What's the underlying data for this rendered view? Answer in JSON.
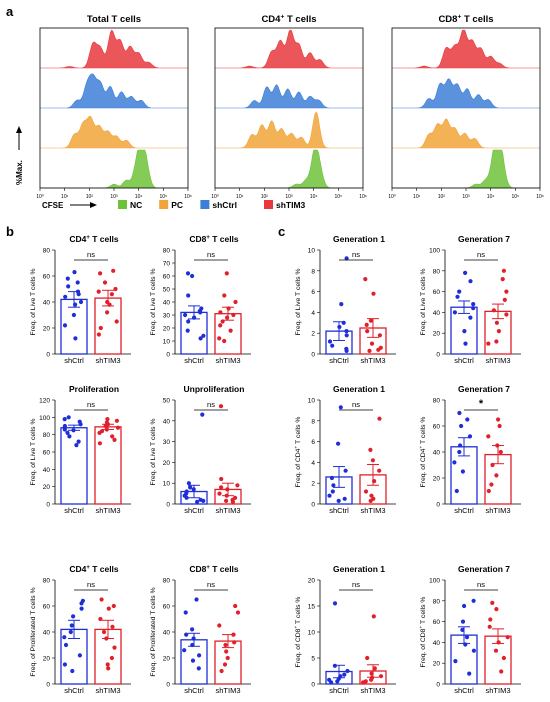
{
  "figure": {
    "panel_labels": [
      "a",
      "b",
      "c"
    ],
    "colors": {
      "NC": "#6ec23a",
      "PC": "#f2a43a",
      "shCtrl": "#3d7fd8",
      "shTIM3": "#e8383d",
      "dot_blue": "#1f2fd6",
      "dot_red": "#e0202a"
    },
    "legend": {
      "axis_label": "CFSE",
      "entries": [
        {
          "name": "NC",
          "color": "#6ec23a"
        },
        {
          "name": "PC",
          "color": "#f2a43a"
        },
        {
          "name": "shCtrl",
          "color": "#3d7fd8"
        },
        {
          "name": "shTIM3",
          "color": "#e8383d"
        }
      ]
    },
    "y_axis_label_a": "%Max."
  },
  "chart_data": [
    {
      "type": "area",
      "panel": "a",
      "title": "Total T cells",
      "title_sup": "",
      "title_rest": "",
      "x_scale": "log",
      "xlim": [
        1,
        1000000
      ],
      "x_ticks": [
        "10⁰",
        "10¹",
        "10²",
        "10³",
        "10⁴",
        "10⁵",
        "10⁶"
      ],
      "series": [
        {
          "name": "shTIM3",
          "peaks": [
            [
              1.2,
              0.04
            ],
            [
              2.15,
              0.62
            ],
            [
              2.45,
              0.5
            ],
            [
              2.9,
              0.96
            ],
            [
              3.25,
              0.7
            ],
            [
              3.65,
              0.55
            ],
            [
              4.0,
              0.38
            ],
            [
              4.4,
              0.15
            ]
          ]
        },
        {
          "name": "shCtrl",
          "peaks": [
            [
              1.5,
              0.2
            ],
            [
              1.9,
              0.55
            ],
            [
              2.15,
              0.72
            ],
            [
              2.45,
              0.62
            ],
            [
              2.85,
              0.56
            ],
            [
              3.3,
              0.42
            ],
            [
              3.7,
              0.3
            ],
            [
              4.1,
              0.2
            ]
          ]
        },
        {
          "name": "PC",
          "peaks": [
            [
              1.4,
              0.35
            ],
            [
              1.75,
              0.6
            ],
            [
              2.05,
              0.75
            ],
            [
              2.4,
              0.55
            ],
            [
              2.75,
              0.42
            ],
            [
              3.1,
              0.3
            ],
            [
              3.5,
              0.2
            ]
          ]
        },
        {
          "name": "NC",
          "peaks": [
            [
              3.0,
              0.1
            ],
            [
              3.5,
              0.2
            ],
            [
              3.9,
              0.45
            ],
            [
              4.1,
              0.95
            ],
            [
              4.3,
              0.55
            ]
          ]
        }
      ]
    },
    {
      "type": "area",
      "panel": "a",
      "title": "",
      "title_sup": "+",
      "title_rest": " T cells",
      "title_base": "CD4",
      "x_scale": "log",
      "xlim": [
        1,
        1000000
      ],
      "x_ticks": [
        "10⁰",
        "10¹",
        "10²",
        "10³",
        "10⁴",
        "10⁵",
        "10⁶"
      ],
      "series": [
        {
          "name": "shTIM3",
          "peaks": [
            [
              1.4,
              0.05
            ],
            [
              2.3,
              0.42
            ],
            [
              2.65,
              0.7
            ],
            [
              3.05,
              0.98
            ],
            [
              3.4,
              0.6
            ],
            [
              3.85,
              0.4
            ],
            [
              4.25,
              0.22
            ]
          ]
        },
        {
          "name": "shCtrl",
          "peaks": [
            [
              1.6,
              0.2
            ],
            [
              2.1,
              0.55
            ],
            [
              2.5,
              0.6
            ],
            [
              2.95,
              0.5
            ],
            [
              3.4,
              0.42
            ],
            [
              3.85,
              0.3
            ],
            [
              4.2,
              0.2
            ]
          ]
        },
        {
          "name": "PC",
          "peaks": [
            [
              1.5,
              0.35
            ],
            [
              1.9,
              0.6
            ],
            [
              2.3,
              0.7
            ],
            [
              2.7,
              0.5
            ],
            [
              3.1,
              0.38
            ],
            [
              3.5,
              0.28
            ],
            [
              4.1,
              0.95
            ]
          ]
        },
        {
          "name": "NC",
          "peaks": [
            [
              3.3,
              0.1
            ],
            [
              3.7,
              0.2
            ],
            [
              4.05,
              0.98
            ],
            [
              4.25,
              0.4
            ]
          ]
        }
      ]
    },
    {
      "type": "area",
      "panel": "a",
      "title": "",
      "title_sup": "+",
      "title_rest": " T cells",
      "title_base": "CD8",
      "x_scale": "log",
      "xlim": [
        1,
        1000000
      ],
      "x_ticks": [
        "10⁰",
        "10¹",
        "10²",
        "10³",
        "10⁴",
        "10⁵",
        "10⁶"
      ],
      "series": [
        {
          "name": "shTIM3",
          "peaks": [
            [
              1.3,
              0.05
            ],
            [
              2.2,
              0.52
            ],
            [
              2.55,
              0.55
            ],
            [
              2.9,
              0.98
            ],
            [
              3.25,
              0.68
            ],
            [
              3.6,
              0.5
            ],
            [
              4.0,
              0.3
            ],
            [
              4.35,
              0.12
            ]
          ]
        },
        {
          "name": "shCtrl",
          "peaks": [
            [
              1.5,
              0.25
            ],
            [
              1.95,
              0.62
            ],
            [
              2.3,
              0.72
            ],
            [
              2.65,
              0.6
            ],
            [
              3.05,
              0.5
            ],
            [
              3.5,
              0.35
            ],
            [
              3.9,
              0.22
            ]
          ]
        },
        {
          "name": "PC",
          "peaks": [
            [
              1.5,
              0.35
            ],
            [
              1.85,
              0.6
            ],
            [
              2.2,
              0.72
            ],
            [
              2.55,
              0.5
            ],
            [
              2.95,
              0.38
            ],
            [
              3.35,
              0.25
            ]
          ]
        },
        {
          "name": "NC",
          "peaks": [
            [
              3.4,
              0.1
            ],
            [
              3.8,
              0.2
            ],
            [
              4.15,
              0.85
            ],
            [
              4.35,
              0.95
            ],
            [
              4.5,
              0.3
            ]
          ]
        }
      ]
    },
    {
      "type": "bar",
      "panel": "b",
      "title_base": "CD4",
      "title_sup": "+",
      "title_rest": " T cells",
      "ylabel_base": "Freq. of Live T cells %",
      "ylabel_sup": "",
      "ylabel_rest": "",
      "ylim": [
        0,
        80
      ],
      "yticks": [
        0,
        20,
        40,
        60,
        80
      ],
      "sig": "ns",
      "categories": [
        "shCtrl",
        "shTIM3"
      ],
      "values": [
        42,
        43
      ],
      "errors": [
        6,
        6
      ],
      "points": [
        [
          63,
          58,
          55,
          52,
          48,
          46,
          44,
          40,
          38,
          30,
          22,
          12
        ],
        [
          64,
          62,
          55,
          50,
          48,
          46,
          40,
          38,
          32,
          25,
          20,
          15
        ]
      ]
    },
    {
      "type": "bar",
      "panel": "b",
      "title_base": "CD8",
      "title_sup": "+",
      "title_rest": " T cells",
      "ylabel_base": "Freq. of Live T cells %",
      "ylabel_sup": "",
      "ylabel_rest": "",
      "ylim": [
        0,
        80
      ],
      "yticks": [
        0,
        10,
        20,
        30,
        40,
        50,
        60,
        70,
        80
      ],
      "sig": "ns",
      "categories": [
        "shCtrl",
        "shTIM3"
      ],
      "values": [
        32,
        31
      ],
      "errors": [
        5,
        5
      ],
      "points": [
        [
          62,
          60,
          45,
          35,
          33,
          32,
          30,
          28,
          25,
          18,
          14,
          12
        ],
        [
          62,
          45,
          40,
          35,
          32,
          30,
          28,
          25,
          22,
          18,
          12,
          10
        ]
      ]
    },
    {
      "type": "bar",
      "panel": "c",
      "title": "Generation 1",
      "ylabel_base": "Freq. of Live T cells %",
      "ylabel_sup": "",
      "ylabel_rest": "",
      "ylim": [
        0,
        10
      ],
      "yticks": [
        0,
        2,
        4,
        6,
        8,
        10
      ],
      "sig": "ns",
      "categories": [
        "shCtrl",
        "shTIM3"
      ],
      "values": [
        2.2,
        2.5
      ],
      "errors": [
        0.9,
        0.9
      ],
      "points": [
        [
          9.2,
          4.8,
          3.0,
          2.6,
          2.2,
          1.8,
          1.2,
          0.8,
          0.5,
          0.3
        ],
        [
          7.2,
          5.8,
          3.2,
          2.8,
          2.2,
          1.8,
          1.0,
          0.6,
          0.4,
          0.3
        ]
      ]
    },
    {
      "type": "bar",
      "panel": "c",
      "title": "Generation 7",
      "ylabel_base": "Freq. of Live T cells %",
      "ylabel_sup": "",
      "ylabel_rest": "",
      "ylim": [
        0,
        100
      ],
      "yticks": [
        0,
        20,
        40,
        60,
        80,
        100
      ],
      "sig": "ns",
      "categories": [
        "shCtrl",
        "shTIM3"
      ],
      "values": [
        45,
        41
      ],
      "errors": [
        6,
        7
      ],
      "points": [
        [
          78,
          70,
          60,
          55,
          48,
          44,
          40,
          35,
          22,
          10
        ],
        [
          80,
          72,
          60,
          52,
          42,
          38,
          30,
          22,
          12,
          10
        ]
      ]
    },
    {
      "type": "bar",
      "panel": "b",
      "title": "Proliferation",
      "ylabel_base": "Freq. of Live T cells %",
      "ylabel_sup": "",
      "ylabel_rest": "",
      "ylim": [
        0,
        120
      ],
      "yticks": [
        0,
        20,
        40,
        60,
        80,
        100,
        120
      ],
      "sig": "ns",
      "categories": [
        "shCtrl",
        "shTIM3"
      ],
      "values": [
        88,
        89
      ],
      "errors": [
        3,
        3
      ],
      "points": [
        [
          100,
          98,
          95,
          92,
          90,
          88,
          86,
          85,
          82,
          78,
          72,
          68
        ],
        [
          98,
          96,
          94,
          92,
          90,
          88,
          86,
          84,
          82,
          78,
          74,
          70
        ]
      ]
    },
    {
      "type": "bar",
      "panel": "b",
      "title": "Unproliferation",
      "ylabel_base": "Freq. of Live T cells %",
      "ylabel_sup": "",
      "ylabel_rest": "",
      "ylim": [
        0,
        50
      ],
      "yticks": [
        0,
        10,
        20,
        30,
        40,
        50
      ],
      "sig": "ns",
      "categories": [
        "shCtrl",
        "shTIM3"
      ],
      "values": [
        6,
        7
      ],
      "errors": [
        3,
        3
      ],
      "points": [
        [
          43,
          10,
          8,
          7,
          6,
          5,
          4,
          3,
          2,
          1.5,
          1
        ],
        [
          47,
          12,
          9,
          8,
          7,
          5,
          4,
          3,
          2,
          1.5,
          1
        ]
      ]
    },
    {
      "type": "bar",
      "panel": "c",
      "title": "Generation 1",
      "ylabel_base": "Freq. of CD4",
      "ylabel_sup": "+",
      "ylabel_rest": " T cells %",
      "ylim": [
        0,
        10
      ],
      "yticks": [
        0,
        2,
        4,
        6,
        8,
        10
      ],
      "sig": "ns",
      "categories": [
        "shCtrl",
        "shTIM3"
      ],
      "values": [
        2.6,
        2.8
      ],
      "errors": [
        1.0,
        1.0
      ],
      "points": [
        [
          9.3,
          5.8,
          3.2,
          2.5,
          1.8,
          1.2,
          0.8,
          0.5,
          0.3
        ],
        [
          8.2,
          5.2,
          4.2,
          3.2,
          2.2,
          1.2,
          0.8,
          0.5,
          0.3
        ]
      ]
    },
    {
      "type": "bar",
      "panel": "c",
      "title": "Generation 7",
      "ylabel_base": "Freq. of CD4",
      "ylabel_sup": "+",
      "ylabel_rest": " T cells %",
      "ylim": [
        0,
        80
      ],
      "yticks": [
        0,
        20,
        40,
        60,
        80
      ],
      "sig": "*",
      "categories": [
        "shCtrl",
        "shTIM3"
      ],
      "values": [
        44,
        38
      ],
      "errors": [
        7,
        7
      ],
      "points": [
        [
          70,
          65,
          60,
          52,
          45,
          40,
          32,
          25,
          10
        ],
        [
          65,
          60,
          52,
          45,
          40,
          30,
          22,
          15,
          10
        ]
      ]
    },
    {
      "type": "bar",
      "panel": "b",
      "title_base": "CD4",
      "title_sup": "+",
      "title_rest": " T cells",
      "ylabel_base": "Freq. of Proliferated T cells %",
      "ylabel_sup": "",
      "ylabel_rest": "",
      "ylim": [
        0,
        80
      ],
      "yticks": [
        0,
        20,
        40,
        60,
        80
      ],
      "sig": "ns",
      "categories": [
        "shCtrl",
        "shTIM3"
      ],
      "values": [
        42,
        42
      ],
      "errors": [
        7,
        7
      ],
      "points": [
        [
          64,
          62,
          58,
          52,
          45,
          40,
          36,
          30,
          22,
          15,
          10
        ],
        [
          65,
          60,
          58,
          50,
          44,
          40,
          35,
          28,
          20,
          15,
          12
        ]
      ]
    },
    {
      "type": "bar",
      "panel": "b",
      "title_base": "CD8",
      "title_sup": "+",
      "title_rest": " T cells",
      "ylabel_base": "Freq. of Proliferated T cells %",
      "ylabel_sup": "",
      "ylabel_rest": "",
      "ylim": [
        0,
        80
      ],
      "yticks": [
        0,
        20,
        40,
        60,
        80
      ],
      "sig": "ns",
      "categories": [
        "shCtrl",
        "shTIM3"
      ],
      "values": [
        34,
        33
      ],
      "errors": [
        5,
        5
      ],
      "points": [
        [
          65,
          55,
          42,
          38,
          35,
          30,
          26,
          22,
          18,
          12
        ],
        [
          60,
          55,
          45,
          38,
          32,
          30,
          25,
          20,
          15,
          10
        ]
      ]
    },
    {
      "type": "bar",
      "panel": "c",
      "title": "Generation 1",
      "ylabel_base": "Freq. of CD8",
      "ylabel_sup": "+",
      "ylabel_rest": " T cells %",
      "ylim": [
        0,
        20
      ],
      "yticks": [
        0,
        5,
        10,
        15,
        20
      ],
      "sig": "ns",
      "categories": [
        "shCtrl",
        "shTIM3"
      ],
      "values": [
        2.4,
        2.5
      ],
      "errors": [
        1.2,
        1.2
      ],
      "points": [
        [
          15.5,
          3.5,
          2.5,
          1.8,
          1.5,
          1.0,
          0.8,
          0.5,
          0.3
        ],
        [
          13,
          5,
          3,
          2,
          1.5,
          1.2,
          0.8,
          0.5,
          0.3
        ]
      ]
    },
    {
      "type": "bar",
      "panel": "c",
      "title": "Generation 7",
      "ylabel_base": "Freq. of CD8",
      "ylabel_sup": "+",
      "ylabel_rest": " T cells %",
      "ylim": [
        0,
        100
      ],
      "yticks": [
        0,
        20,
        40,
        60,
        80,
        100
      ],
      "sig": "ns",
      "categories": [
        "shCtrl",
        "shTIM3"
      ],
      "values": [
        47,
        46
      ],
      "errors": [
        8,
        7
      ],
      "points": [
        [
          80,
          75,
          60,
          52,
          45,
          38,
          32,
          22,
          10
        ],
        [
          78,
          72,
          62,
          55,
          45,
          40,
          32,
          25,
          12
        ]
      ]
    }
  ]
}
